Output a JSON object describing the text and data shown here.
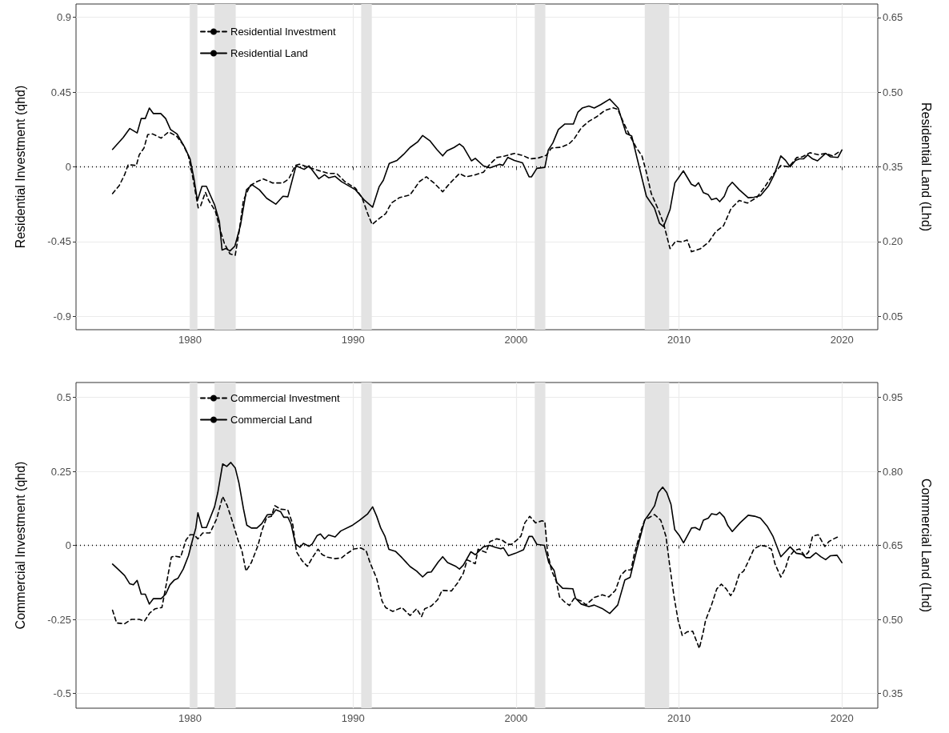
{
  "chart_data": [
    {
      "type": "line",
      "ylabel": "Residential Investment (qhd)",
      "y2label": "Residential Land (Lhd)",
      "xlim": [
        1973.0,
        2022.2
      ],
      "xticks": [
        1980,
        1990,
        2000,
        2010,
        2020
      ],
      "ylim": [
        -0.98,
        0.98
      ],
      "yticks": [
        -0.9,
        -0.45,
        0,
        0.45,
        0.9
      ],
      "y2lim": [
        0.023,
        0.677
      ],
      "y2ticks": [
        0.05,
        {
          "value": 0.2,
          "label": "0.20"
        },
        0.35,
        {
          "value": 0.5,
          "label": "0.50"
        },
        0.65
      ],
      "grid": true,
      "legend": "top left",
      "marker": "none",
      "ref_lines": [
        {
          "axis": "y",
          "value": 0,
          "line_style": "dotted",
          "color": "#000000"
        }
      ],
      "bands": [
        {
          "axis": "x",
          "from": 1980.0,
          "to": 1980.45,
          "color": "#e3e3e3"
        },
        {
          "axis": "x",
          "from": 1981.5,
          "to": 1982.8,
          "color": "#e3e3e3"
        },
        {
          "axis": "x",
          "from": 1990.5,
          "to": 1991.15,
          "color": "#e3e3e3"
        },
        {
          "axis": "x",
          "from": 2001.15,
          "to": 2001.8,
          "color": "#e3e3e3"
        },
        {
          "axis": "x",
          "from": 2007.9,
          "to": 2009.4,
          "color": "#e3e3e3"
        }
      ],
      "series": [
        {
          "name": "Residential Investment",
          "color": "#000000",
          "line_style": "dashed",
          "x": [
            1975.24,
            1975.65,
            1975.98,
            1976.2,
            1976.7,
            1976.88,
            1977.17,
            1977.4,
            1977.7,
            1978.22,
            1978.68,
            1979.17,
            1979.6,
            1979.9,
            1980.15,
            1980.5,
            1980.65,
            1980.94,
            1981.14,
            1981.55,
            1981.87,
            1982.1,
            1982.45,
            1982.77,
            1983.0,
            1983.27,
            1983.68,
            1984.1,
            1984.5,
            1985.07,
            1985.7,
            1986.05,
            1986.46,
            1986.7,
            1987.2,
            1987.85,
            1988.5,
            1989.0,
            1989.5,
            1990.15,
            1990.55,
            1990.9,
            1991.17,
            1991.6,
            1992.0,
            1992.35,
            1992.85,
            1993.5,
            1994.07,
            1994.5,
            1994.97,
            1995.5,
            1995.96,
            1996.53,
            1996.94,
            1997.5,
            1998.0,
            1998.4,
            1998.82,
            1999.3,
            1999.9,
            2000.4,
            2000.87,
            2001.36,
            2001.85,
            2002.18,
            2002.75,
            2003.24,
            2003.57,
            2004.0,
            2004.47,
            2004.96,
            2005.45,
            2005.94,
            2006.24,
            2006.6,
            2007.0,
            2007.4,
            2007.73,
            2008.0,
            2008.3,
            2008.7,
            2009.05,
            2009.3,
            2009.45,
            2009.8,
            2010.2,
            2010.5,
            2010.77,
            2011.33,
            2011.83,
            2012.24,
            2012.73,
            2013.2,
            2013.7,
            2014.2,
            2014.77,
            2015.26,
            2015.76,
            2016.25,
            2016.74,
            2017.23,
            2017.56,
            2018.04,
            2018.54,
            2019.03,
            2019.44,
            2019.93
          ],
          "values": [
            -0.161,
            -0.113,
            -0.048,
            0.013,
            0.008,
            0.073,
            0.113,
            0.194,
            0.198,
            0.173,
            0.21,
            0.185,
            0.129,
            0.065,
            -0.056,
            -0.247,
            -0.234,
            -0.153,
            -0.202,
            -0.266,
            -0.387,
            -0.46,
            -0.524,
            -0.532,
            -0.395,
            -0.202,
            -0.113,
            -0.089,
            -0.073,
            -0.097,
            -0.097,
            -0.073,
            0.008,
            0.016,
            0,
            -0.021,
            -0.04,
            -0.04,
            -0.089,
            -0.129,
            -0.185,
            -0.282,
            -0.347,
            -0.311,
            -0.282,
            -0.218,
            -0.185,
            -0.169,
            -0.089,
            -0.06,
            -0.097,
            -0.15,
            -0.097,
            -0.04,
            -0.06,
            -0.048,
            -0.032,
            0.016,
            0.056,
            0.065,
            0.081,
            0.069,
            0.048,
            0.053,
            0.069,
            0.113,
            0.118,
            0.137,
            0.169,
            0.234,
            0.274,
            0.302,
            0.339,
            0.355,
            0.347,
            0.266,
            0.185,
            0.113,
            0.065,
            -0.032,
            -0.161,
            -0.25,
            -0.339,
            -0.435,
            -0.492,
            -0.447,
            -0.452,
            -0.44,
            -0.511,
            -0.492,
            -0.452,
            -0.392,
            -0.355,
            -0.25,
            -0.202,
            -0.218,
            -0.185,
            -0.121,
            -0.048,
            0.008,
            0,
            0.056,
            0.06,
            0.085,
            0.073,
            0.081,
            0.065,
            0.097
          ]
        },
        {
          "name": "Residential Land",
          "color": "#000000",
          "line_style": "solid",
          "axis": "y2",
          "x": [
            1975.24,
            1975.9,
            1976.3,
            1976.75,
            1977.0,
            1977.25,
            1977.5,
            1977.75,
            1978.2,
            1978.5,
            1978.8,
            1979.2,
            1979.66,
            1980.0,
            1980.24,
            1980.45,
            1980.73,
            1981.0,
            1981.5,
            1981.8,
            1981.96,
            1982.2,
            1982.45,
            1982.75,
            1983.1,
            1983.46,
            1983.8,
            1984.25,
            1984.7,
            1985.26,
            1985.7,
            1986.0,
            1986.5,
            1987.0,
            1987.3,
            1987.9,
            1988.25,
            1988.5,
            1988.9,
            1989.3,
            1990.15,
            1990.7,
            1991.2,
            1991.6,
            1991.86,
            1992.22,
            1992.7,
            1993.1,
            1993.5,
            1993.96,
            1994.27,
            1994.73,
            1995.14,
            1995.5,
            1995.76,
            1996.2,
            1996.53,
            1996.77,
            1997.27,
            1997.5,
            1998.0,
            1998.4,
            1998.98,
            1999.2,
            1999.5,
            1999.9,
            2000.4,
            2000.8,
            2000.95,
            2001.28,
            2001.77,
            2001.98,
            2002.26,
            2002.6,
            2003.0,
            2003.52,
            2003.8,
            2004.06,
            2004.47,
            2004.8,
            2005.2,
            2005.75,
            2006.27,
            2006.5,
            2006.76,
            2007.1,
            2007.5,
            2008.0,
            2008.5,
            2008.8,
            2009.05,
            2009.45,
            2009.75,
            2010.27,
            2010.76,
            2011.0,
            2011.2,
            2011.5,
            2011.8,
            2012.0,
            2012.3,
            2012.5,
            2012.78,
            2013.0,
            2013.27,
            2013.7,
            2014.25,
            2014.6,
            2015.0,
            2015.5,
            2015.84,
            2016.25,
            2016.54,
            2016.82,
            2017.15,
            2017.4,
            2017.64,
            2017.9,
            2018.2,
            2018.5,
            2019.0,
            2019.3,
            2019.76,
            2020.0
          ],
          "values": [
            0.385,
            0.409,
            0.427,
            0.418,
            0.447,
            0.447,
            0.468,
            0.457,
            0.457,
            0.447,
            0.425,
            0.416,
            0.39,
            0.366,
            0.326,
            0.282,
            0.311,
            0.311,
            0.274,
            0.24,
            0.183,
            0.186,
            0.181,
            0.191,
            0.234,
            0.304,
            0.314,
            0.304,
            0.287,
            0.275,
            0.291,
            0.29,
            0.352,
            0.345,
            0.352,
            0.326,
            0.334,
            0.328,
            0.331,
            0.32,
            0.304,
            0.283,
            0.269,
            0.31,
            0.323,
            0.357,
            0.363,
            0.375,
            0.389,
            0.4,
            0.413,
            0.402,
            0.385,
            0.372,
            0.382,
            0.389,
            0.396,
            0.39,
            0.362,
            0.367,
            0.352,
            0.348,
            0.355,
            0.353,
            0.369,
            0.363,
            0.358,
            0.33,
            0.33,
            0.347,
            0.349,
            0.384,
            0.398,
            0.425,
            0.436,
            0.436,
            0.46,
            0.468,
            0.472,
            0.468,
            0.475,
            0.486,
            0.468,
            0.444,
            0.417,
            0.412,
            0.358,
            0.291,
            0.267,
            0.237,
            0.23,
            0.264,
            0.318,
            0.342,
            0.315,
            0.311,
            0.318,
            0.298,
            0.294,
            0.284,
            0.287,
            0.28,
            0.291,
            0.309,
            0.319,
            0.304,
            0.288,
            0.289,
            0.292,
            0.312,
            0.334,
            0.372,
            0.363,
            0.35,
            0.363,
            0.366,
            0.366,
            0.374,
            0.366,
            0.362,
            0.377,
            0.37,
            0.369,
            0.384
          ]
        }
      ]
    },
    {
      "type": "line",
      "ylabel": "Commercial Investment (qhd)",
      "y2label": "Commercial Land (Lhd)",
      "xlim": [
        1973.0,
        2022.2
      ],
      "xticks": [
        1980,
        1990,
        2000,
        2010,
        2020
      ],
      "ylim": [
        -0.55,
        0.55
      ],
      "yticks": [
        -0.5,
        -0.25,
        0,
        0.25,
        0.5
      ],
      "y2lim": [
        0.32,
        0.98
      ],
      "y2ticks": [
        0.35,
        {
          "value": 0.5,
          "label": "0.50"
        },
        0.65,
        {
          "value": 0.8,
          "label": "0.80"
        },
        0.95
      ],
      "grid": true,
      "legend": "top left",
      "marker": "none",
      "ref_lines": [
        {
          "axis": "y",
          "value": 0,
          "line_style": "dotted",
          "color": "#000000"
        }
      ],
      "bands": [
        {
          "axis": "x",
          "from": 1980.0,
          "to": 1980.45,
          "color": "#e3e3e3"
        },
        {
          "axis": "x",
          "from": 1981.5,
          "to": 1982.8,
          "color": "#e3e3e3"
        },
        {
          "axis": "x",
          "from": 1990.5,
          "to": 1991.15,
          "color": "#e3e3e3"
        },
        {
          "axis": "x",
          "from": 2001.15,
          "to": 2001.8,
          "color": "#e3e3e3"
        },
        {
          "axis": "x",
          "from": 2007.9,
          "to": 2009.4,
          "color": "#e3e3e3"
        }
      ],
      "series": [
        {
          "name": "Commercial Investment",
          "color": "#000000",
          "line_style": "dashed",
          "x": [
            1975.24,
            1975.49,
            1975.98,
            1976.4,
            1976.88,
            1977.2,
            1977.53,
            1977.86,
            1978.27,
            1978.5,
            1978.85,
            1979.04,
            1979.42,
            1979.75,
            1980.0,
            1980.24,
            1980.48,
            1980.78,
            1981.22,
            1981.63,
            1982.0,
            1982.28,
            1982.6,
            1982.94,
            1983.18,
            1983.43,
            1983.76,
            1984.17,
            1984.4,
            1984.7,
            1984.99,
            1985.2,
            1985.56,
            1985.8,
            1986.0,
            1986.3,
            1986.53,
            1986.86,
            1987.2,
            1987.52,
            1987.85,
            1988.1,
            1988.43,
            1988.9,
            1989.3,
            1989.65,
            1990.06,
            1990.47,
            1990.8,
            1991.04,
            1991.45,
            1991.78,
            1992.0,
            1992.43,
            1993.0,
            1993.5,
            1993.9,
            1994.2,
            1994.4,
            1994.8,
            1995.2,
            1995.46,
            1996.04,
            1996.44,
            1996.77,
            1997.0,
            1997.5,
            1997.67,
            1998.16,
            1998.4,
            1998.82,
            1999.14,
            1999.48,
            1999.72,
            2000.05,
            2000.3,
            2000.54,
            2000.84,
            2001.2,
            2001.6,
            2001.77,
            2001.93,
            2002.18,
            2002.47,
            2002.67,
            2003.0,
            2003.28,
            2003.57,
            2004.0,
            2004.3,
            2004.8,
            2005.29,
            2005.7,
            2006.1,
            2006.43,
            2006.76,
            2007.06,
            2007.25,
            2007.66,
            2007.9,
            2008.24,
            2008.5,
            2008.88,
            2009.2,
            2009.45,
            2009.7,
            2009.95,
            2010.2,
            2010.5,
            2010.84,
            2011.25,
            2011.5,
            2011.63,
            2012.0,
            2012.32,
            2012.6,
            2012.9,
            2013.17,
            2013.38,
            2013.7,
            2013.97,
            2014.3,
            2014.6,
            2015.0,
            2015.35,
            2015.67,
            2015.89,
            2016.25,
            2016.54,
            2016.74,
            2017.07,
            2017.4,
            2017.72,
            2017.96,
            2018.2,
            2018.54,
            2018.95,
            2019.2,
            2019.5,
            2019.85
          ],
          "values": [
            -0.219,
            -0.262,
            -0.265,
            -0.25,
            -0.25,
            -0.256,
            -0.228,
            -0.214,
            -0.21,
            -0.143,
            -0.04,
            -0.036,
            -0.04,
            0.018,
            0.036,
            0.036,
            0.022,
            0.042,
            0.042,
            0.089,
            0.165,
            0.134,
            0.08,
            0.018,
            -0.018,
            -0.087,
            -0.058,
            0,
            0.049,
            0.094,
            0.098,
            0.134,
            0.122,
            0.121,
            0.119,
            0.071,
            -0.022,
            -0.051,
            -0.071,
            -0.04,
            -0.013,
            -0.031,
            -0.04,
            -0.045,
            -0.042,
            -0.027,
            -0.012,
            -0.009,
            -0.018,
            -0.058,
            -0.112,
            -0.188,
            -0.21,
            -0.223,
            -0.21,
            -0.237,
            -0.214,
            -0.241,
            -0.214,
            -0.205,
            -0.183,
            -0.152,
            -0.154,
            -0.125,
            -0.094,
            -0.049,
            -0.062,
            -0.013,
            -0.024,
            0.013,
            0.022,
            0.018,
            0.004,
            0.003,
            0.018,
            0.031,
            0.076,
            0.098,
            0.076,
            0.083,
            0.08,
            -0.022,
            -0.085,
            -0.121,
            -0.174,
            -0.192,
            -0.203,
            -0.179,
            -0.188,
            -0.201,
            -0.176,
            -0.167,
            -0.174,
            -0.152,
            -0.101,
            -0.083,
            -0.083,
            -0.031,
            0.049,
            0.085,
            0.096,
            0.104,
            0.085,
            0.031,
            -0.076,
            -0.174,
            -0.254,
            -0.304,
            -0.292,
            -0.29,
            -0.348,
            -0.29,
            -0.254,
            -0.201,
            -0.147,
            -0.131,
            -0.147,
            -0.17,
            -0.152,
            -0.098,
            -0.087,
            -0.049,
            -0.012,
            0,
            -0.003,
            -0.013,
            -0.062,
            -0.107,
            -0.076,
            -0.04,
            -0.018,
            -0.012,
            -0.036,
            -0.022,
            0.031,
            0.036,
            -0.004,
            0.013,
            0.022,
            0.031
          ]
        },
        {
          "name": "Commercial Land",
          "color": "#000000",
          "line_style": "solid",
          "axis": "y2",
          "x": [
            1975.24,
            1975.57,
            1975.98,
            1976.3,
            1976.52,
            1976.75,
            1977.0,
            1977.25,
            1977.5,
            1977.75,
            1978.22,
            1978.5,
            1978.76,
            1979.04,
            1979.25,
            1979.58,
            1979.9,
            1980.15,
            1980.35,
            1980.48,
            1980.73,
            1981.0,
            1981.5,
            1981.7,
            1982.0,
            1982.25,
            1982.5,
            1982.77,
            1983.0,
            1983.27,
            1983.48,
            1983.76,
            1984.1,
            1984.4,
            1984.74,
            1985.07,
            1985.26,
            1985.56,
            1985.75,
            1986.0,
            1986.2,
            1986.46,
            1986.74,
            1986.95,
            1987.3,
            1987.5,
            1987.8,
            1988.0,
            1988.25,
            1988.5,
            1988.9,
            1989.24,
            1989.98,
            1990.4,
            1990.9,
            1991.2,
            1991.45,
            1991.7,
            1991.95,
            1992.2,
            1992.6,
            1993.0,
            1993.5,
            1993.9,
            1994.27,
            1994.56,
            1994.8,
            1995.22,
            1995.5,
            1995.8,
            1996.28,
            1996.53,
            1996.77,
            1997.23,
            1997.5,
            1998.0,
            1998.38,
            1998.74,
            1999.07,
            1999.23,
            1999.53,
            1999.97,
            2000.46,
            2000.8,
            2001.0,
            2001.28,
            2001.74,
            2002.01,
            2002.34,
            2002.5,
            2002.86,
            2003.49,
            2003.65,
            2004.0,
            2004.47,
            2004.8,
            2005.29,
            2005.75,
            2006.24,
            2006.68,
            2007.0,
            2007.4,
            2007.9,
            2008.24,
            2008.5,
            2008.73,
            2009.0,
            2009.25,
            2009.51,
            2009.74,
            2010.04,
            2010.28,
            2010.77,
            2011.0,
            2011.27,
            2011.5,
            2011.8,
            2012.0,
            2012.3,
            2012.5,
            2012.78,
            2013.0,
            2013.27,
            2013.76,
            2014.25,
            2014.64,
            2015.0,
            2015.43,
            2015.76,
            2016.25,
            2016.54,
            2016.82,
            2017.2,
            2017.56,
            2017.8,
            2018.05,
            2018.4,
            2018.7,
            2019.0,
            2019.3,
            2019.7,
            2020.0
          ],
          "values": [
            0.612,
            0.602,
            0.589,
            0.572,
            0.57,
            0.579,
            0.551,
            0.551,
            0.531,
            0.542,
            0.542,
            0.551,
            0.57,
            0.58,
            0.583,
            0.602,
            0.629,
            0.661,
            0.685,
            0.716,
            0.686,
            0.686,
            0.728,
            0.757,
            0.815,
            0.81,
            0.818,
            0.807,
            0.776,
            0.725,
            0.691,
            0.685,
            0.685,
            0.694,
            0.712,
            0.713,
            0.722,
            0.718,
            0.707,
            0.707,
            0.693,
            0.653,
            0.646,
            0.654,
            0.648,
            0.653,
            0.67,
            0.673,
            0.663,
            0.671,
            0.667,
            0.679,
            0.691,
            0.701,
            0.714,
            0.728,
            0.709,
            0.685,
            0.669,
            0.642,
            0.638,
            0.625,
            0.607,
            0.598,
            0.586,
            0.595,
            0.596,
            0.616,
            0.627,
            0.615,
            0.608,
            0.602,
            0.61,
            0.637,
            0.631,
            0.647,
            0.65,
            0.646,
            0.643,
            0.645,
            0.629,
            0.634,
            0.641,
            0.668,
            0.668,
            0.652,
            0.65,
            0.615,
            0.599,
            0.575,
            0.563,
            0.562,
            0.543,
            0.531,
            0.526,
            0.529,
            0.522,
            0.512,
            0.529,
            0.58,
            0.585,
            0.639,
            0.701,
            0.717,
            0.73,
            0.757,
            0.768,
            0.757,
            0.733,
            0.682,
            0.669,
            0.655,
            0.685,
            0.686,
            0.681,
            0.701,
            0.705,
            0.714,
            0.712,
            0.717,
            0.707,
            0.69,
            0.678,
            0.696,
            0.711,
            0.709,
            0.705,
            0.688,
            0.669,
            0.627,
            0.637,
            0.647,
            0.634,
            0.632,
            0.625,
            0.625,
            0.635,
            0.627,
            0.621,
            0.629,
            0.63,
            0.615
          ]
        }
      ]
    }
  ]
}
